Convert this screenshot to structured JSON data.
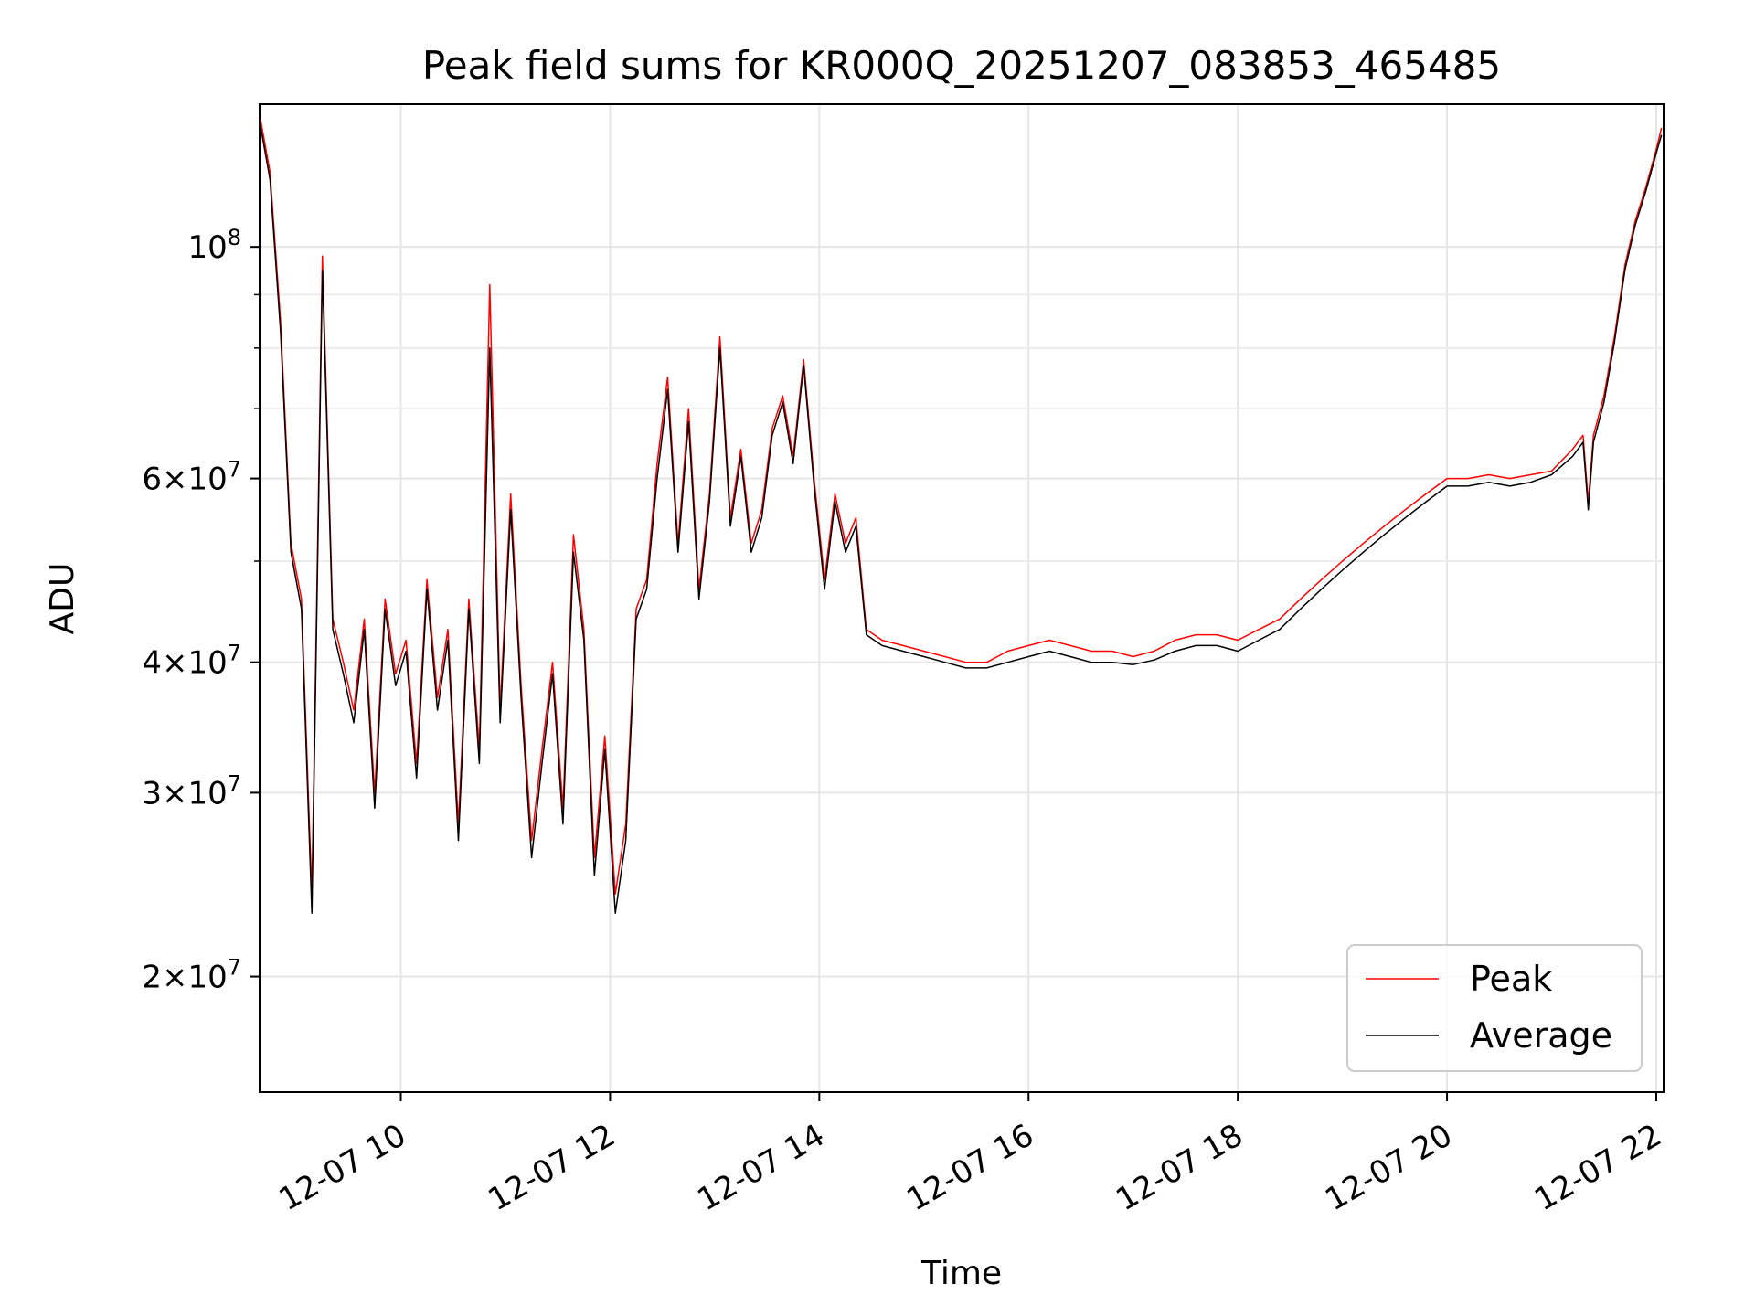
{
  "chart_data": {
    "type": "line",
    "title": "Peak field sums for KR000Q_20251207_083853_465485",
    "xlabel": "Time",
    "ylabel": "ADU",
    "yscale": "log",
    "grid": true,
    "legend_position": "lower-right",
    "xlim": [
      8.65,
      22.07
    ],
    "ylim": [
      15500000,
      137000000
    ],
    "x_ticks": [
      {
        "value": 10,
        "label": "12-07 10"
      },
      {
        "value": 12,
        "label": "12-07 12"
      },
      {
        "value": 14,
        "label": "12-07 14"
      },
      {
        "value": 16,
        "label": "12-07 16"
      },
      {
        "value": 18,
        "label": "12-07 18"
      },
      {
        "value": 20,
        "label": "12-07 20"
      },
      {
        "value": 22,
        "label": "12-07 22"
      }
    ],
    "y_ticks": [
      {
        "value": 20000000,
        "mantissa": "2",
        "exp": "7"
      },
      {
        "value": 30000000,
        "mantissa": "3",
        "exp": "7"
      },
      {
        "value": 40000000,
        "mantissa": "4",
        "exp": "7"
      },
      {
        "value": 60000000,
        "mantissa": "6",
        "exp": "7"
      },
      {
        "value": 100000000,
        "mantissa": "",
        "exp": "8"
      }
    ],
    "y_minor_ticks": [
      50000000,
      70000000,
      80000000,
      90000000
    ],
    "x": [
      8.65,
      8.75,
      8.85,
      8.95,
      9.05,
      9.15,
      9.25,
      9.35,
      9.45,
      9.55,
      9.65,
      9.75,
      9.85,
      9.95,
      10.05,
      10.15,
      10.25,
      10.35,
      10.45,
      10.55,
      10.65,
      10.75,
      10.85,
      10.95,
      11.05,
      11.15,
      11.25,
      11.35,
      11.45,
      11.55,
      11.65,
      11.75,
      11.85,
      11.95,
      12.05,
      12.15,
      12.25,
      12.35,
      12.45,
      12.55,
      12.65,
      12.75,
      12.85,
      12.95,
      13.05,
      13.15,
      13.25,
      13.35,
      13.45,
      13.55,
      13.65,
      13.75,
      13.85,
      13.95,
      14.05,
      14.15,
      14.25,
      14.35,
      14.45,
      14.6,
      14.8,
      15.0,
      15.2,
      15.4,
      15.6,
      15.8,
      16.0,
      16.2,
      16.4,
      16.6,
      16.8,
      17.0,
      17.2,
      17.4,
      17.6,
      17.8,
      18.0,
      18.2,
      18.4,
      18.6,
      18.8,
      19.0,
      19.2,
      19.4,
      19.6,
      19.8,
      20.0,
      20.2,
      20.4,
      20.6,
      20.8,
      21.0,
      21.2,
      21.3,
      21.35,
      21.4,
      21.5,
      21.6,
      21.7,
      21.8,
      21.9,
      22.0,
      22.05
    ],
    "series": [
      {
        "name": "Peak",
        "color": "#ff0000",
        "values": [
          134000000,
          118000000,
          85000000,
          52000000,
          46000000,
          24000000,
          98000000,
          44000000,
          40000000,
          36000000,
          44000000,
          30000000,
          46000000,
          39000000,
          42000000,
          32000000,
          48000000,
          37000000,
          43000000,
          28000000,
          46000000,
          33000000,
          92000000,
          36000000,
          58000000,
          38000000,
          27000000,
          33000000,
          40000000,
          29000000,
          53000000,
          43000000,
          26000000,
          34000000,
          24000000,
          28000000,
          45000000,
          48000000,
          62000000,
          75000000,
          52000000,
          70000000,
          47000000,
          58000000,
          82000000,
          55000000,
          64000000,
          52000000,
          56000000,
          67000000,
          72000000,
          63000000,
          78000000,
          60000000,
          48000000,
          58000000,
          52000000,
          55000000,
          43000000,
          42000000,
          41500000,
          41000000,
          40500000,
          40000000,
          40000000,
          41000000,
          41500000,
          42000000,
          41500000,
          41000000,
          41000000,
          40500000,
          41000000,
          42000000,
          42500000,
          42500000,
          42000000,
          43000000,
          44000000,
          46000000,
          48000000,
          50000000,
          52000000,
          54000000,
          56000000,
          58000000,
          60000000,
          60000000,
          60500000,
          60000000,
          60500000,
          61000000,
          64000000,
          66000000,
          57000000,
          66000000,
          72000000,
          82000000,
          96000000,
          106000000,
          114000000,
          124000000,
          130000000
        ]
      },
      {
        "name": "Average",
        "color": "#000000",
        "values": [
          132000000,
          116000000,
          83000000,
          51000000,
          45000000,
          23000000,
          95000000,
          43000000,
          39000000,
          35000000,
          43000000,
          29000000,
          45000000,
          38000000,
          41000000,
          31000000,
          47000000,
          36000000,
          42000000,
          27000000,
          45000000,
          32000000,
          80000000,
          35000000,
          56000000,
          37000000,
          26000000,
          32000000,
          39000000,
          28000000,
          51000000,
          42000000,
          25000000,
          33000000,
          23000000,
          27000000,
          44000000,
          47000000,
          60000000,
          73000000,
          51000000,
          68000000,
          46000000,
          57000000,
          80000000,
          54000000,
          63000000,
          51000000,
          55000000,
          66000000,
          71000000,
          62000000,
          77000000,
          59000000,
          47000000,
          57000000,
          51000000,
          54000000,
          42500000,
          41500000,
          41000000,
          40500000,
          40000000,
          39500000,
          39500000,
          40000000,
          40500000,
          41000000,
          40500000,
          40000000,
          40000000,
          39800000,
          40200000,
          41000000,
          41500000,
          41500000,
          41000000,
          42000000,
          43000000,
          45000000,
          47000000,
          49000000,
          51000000,
          53000000,
          55000000,
          57000000,
          59000000,
          59000000,
          59500000,
          59000000,
          59500000,
          60500000,
          63000000,
          65000000,
          56000000,
          65000000,
          71000000,
          81000000,
          95000000,
          105000000,
          113000000,
          123000000,
          128000000
        ]
      }
    ]
  }
}
